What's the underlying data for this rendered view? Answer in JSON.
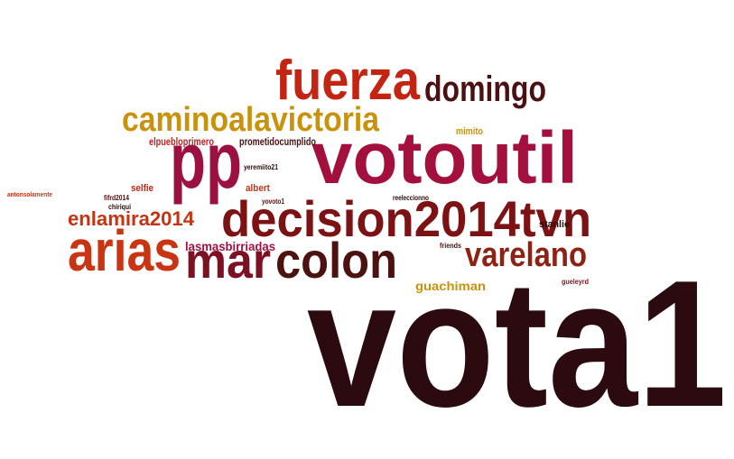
{
  "words": [
    {
      "text": "vota1",
      "color": "#2b0a10"
    },
    {
      "text": "votoutil",
      "color": "#a3103e"
    },
    {
      "text": "pp",
      "color": "#9b1242"
    },
    {
      "text": "decision2014tvn",
      "color": "#7c1214"
    },
    {
      "text": "fuerza",
      "color": "#c42412"
    },
    {
      "text": "domingo",
      "color": "#4b1012"
    },
    {
      "text": "caminoalavictoria",
      "color": "#c8920c"
    },
    {
      "text": "arias",
      "color": "#c93412"
    },
    {
      "text": "mar",
      "color": "#7d1022"
    },
    {
      "text": "colon",
      "color": "#4b1210"
    },
    {
      "text": "varelano",
      "color": "#8c2212"
    },
    {
      "text": "enlamira2014",
      "color": "#c43412"
    },
    {
      "text": "elpuebloprimero",
      "color": "#c42222"
    },
    {
      "text": "prometidocumplido",
      "color": "#4b1010"
    },
    {
      "text": "mimito",
      "color": "#c8920c"
    },
    {
      "text": "lasmasbirriadas",
      "color": "#a31042"
    },
    {
      "text": "guachiman",
      "color": "#c8920c"
    },
    {
      "text": "stanlie",
      "color": "#2b0a0a"
    },
    {
      "text": "selfie",
      "color": "#c42412"
    },
    {
      "text": "albert",
      "color": "#c43412"
    },
    {
      "text": "yeremiito21",
      "color": "#2b0a0a"
    },
    {
      "text": "yovoto1",
      "color": "#4b1010"
    },
    {
      "text": "fifrd2014",
      "color": "#4b1010"
    },
    {
      "text": "chiriqui",
      "color": "#2b0a0a"
    },
    {
      "text": "antonsolamente",
      "color": "#c43412"
    },
    {
      "text": "reeleccionno",
      "color": "#2b0a0a"
    },
    {
      "text": "friends",
      "color": "#4b1010"
    },
    {
      "text": "gueleyrd",
      "color": "#8c1022"
    }
  ]
}
